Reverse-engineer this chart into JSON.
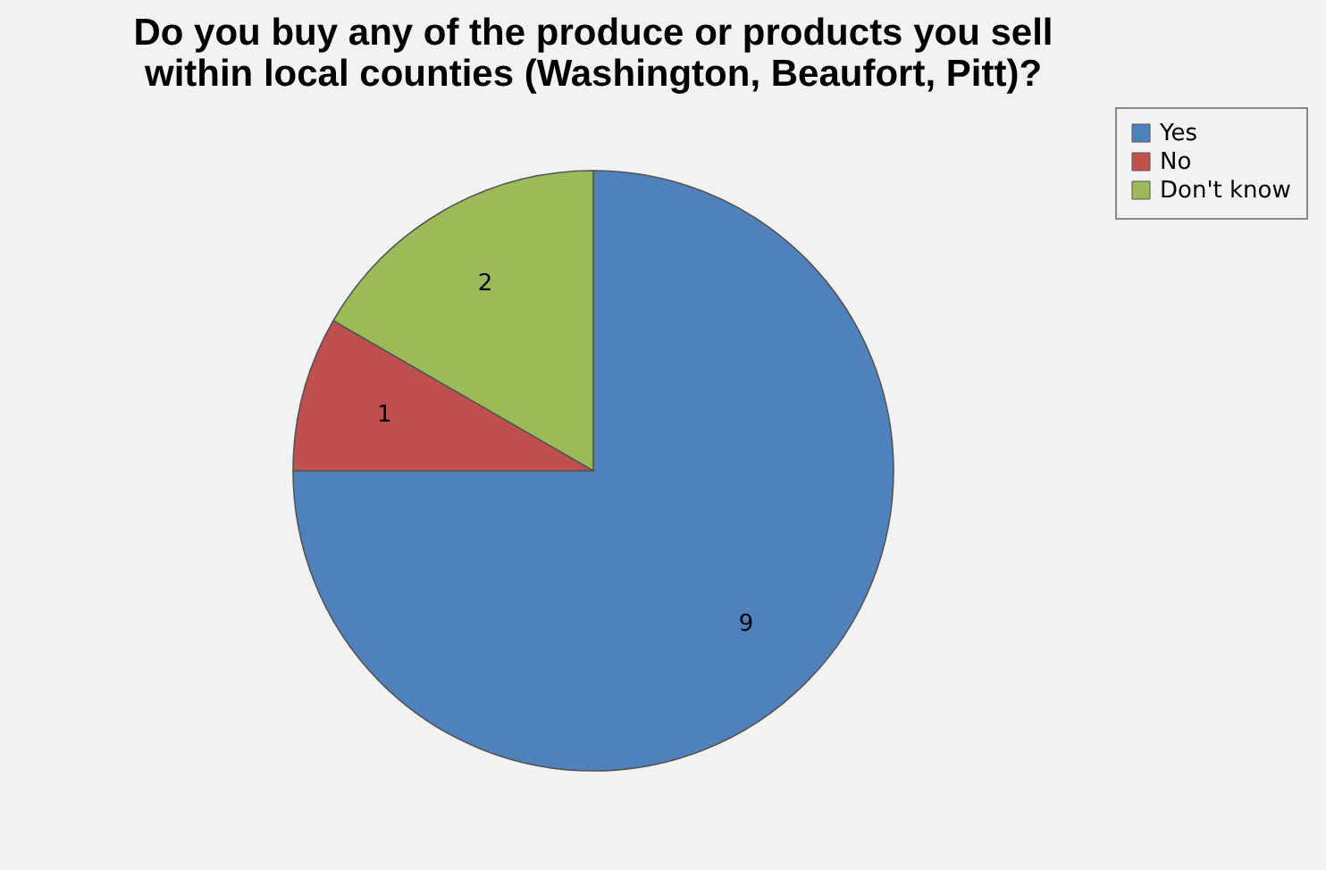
{
  "chart_data": {
    "type": "pie",
    "title": "Do you buy any of the produce or products you sell within local counties (Washington, Beaufort, Pitt)?",
    "categories": [
      "Yes",
      "No",
      "Don't know"
    ],
    "values": [
      9,
      1,
      2
    ],
    "colors": [
      "#4f81bd",
      "#c0504d",
      "#9bbb59"
    ],
    "data_labels": true,
    "legend": "right"
  }
}
